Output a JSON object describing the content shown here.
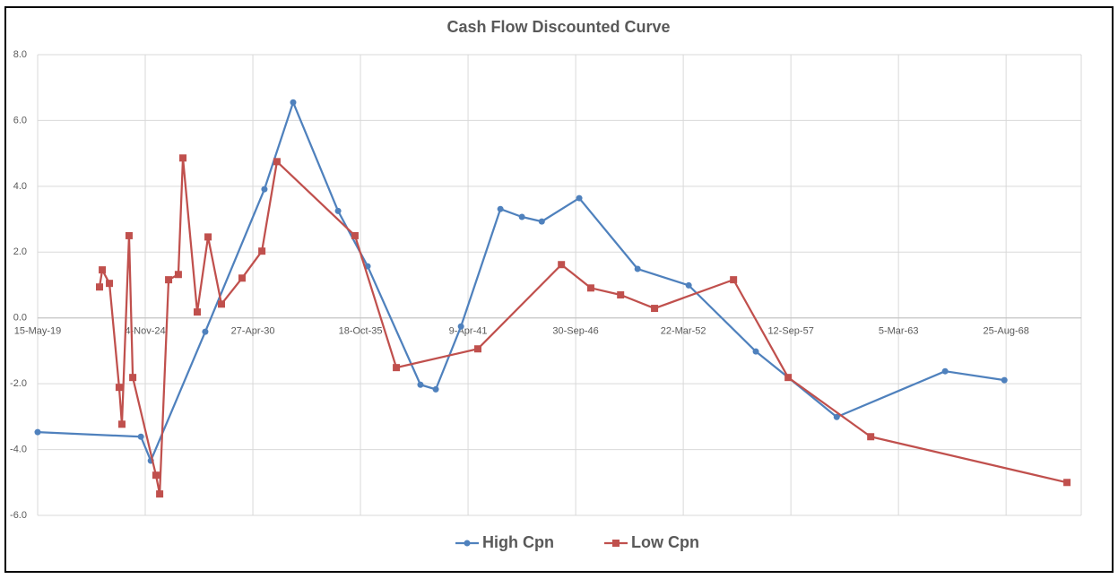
{
  "chart_data": {
    "type": "line",
    "title": "Cash Flow Discounted Curve",
    "xlim": [
      "2019-05-15",
      "2072-06-22"
    ],
    "xticks": [
      {
        "value": "2019-05-15",
        "label": "15-May-19"
      },
      {
        "value": "2024-11-04",
        "label": "4-Nov-24"
      },
      {
        "value": "2030-04-27",
        "label": "27-Apr-30"
      },
      {
        "value": "2035-10-18",
        "label": "18-Oct-35"
      },
      {
        "value": "2041-04-09",
        "label": "9-Apr-41"
      },
      {
        "value": "2046-09-30",
        "label": "30-Sep-46"
      },
      {
        "value": "2052-03-22",
        "label": "22-Mar-52"
      },
      {
        "value": "2057-09-12",
        "label": "12-Sep-57"
      },
      {
        "value": "2063-03-05",
        "label": "5-Mar-63"
      },
      {
        "value": "2068-08-25",
        "label": "25-Aug-68"
      }
    ],
    "ylim": [
      -6,
      8
    ],
    "yticks": [
      {
        "value": 8,
        "label": "8.0"
      },
      {
        "value": 6,
        "label": "6.0"
      },
      {
        "value": 4,
        "label": "4.0"
      },
      {
        "value": 2,
        "label": "2.0"
      },
      {
        "value": 0,
        "label": "0.0"
      },
      {
        "value": -2,
        "label": "-2.0"
      },
      {
        "value": -4,
        "label": "-4.0"
      },
      {
        "value": -6,
        "label": "-6.0"
      }
    ],
    "grid": true,
    "legend": "bottom",
    "series": [
      {
        "name": "High Cpn",
        "color": "#4f81bd",
        "marker": "circle",
        "x": [
          "2019-05-15",
          "2024-08-15",
          "2025-02-15",
          "2027-11-24",
          "2030-11-28",
          "2032-05-15",
          "2034-08-28",
          "2036-02-28",
          "2038-11-06",
          "2039-08-18",
          "2040-11-28",
          "2042-12-01",
          "2044-01-05",
          "2045-01-08",
          "2046-12-05",
          "2049-11-24",
          "2052-07-01",
          "2055-12-01",
          "2057-07-24",
          "2060-01-12",
          "2065-07-19",
          "2068-07-24"
        ],
        "values": [
          -3.47,
          -3.61,
          -4.34,
          -0.42,
          3.91,
          6.55,
          3.25,
          1.57,
          -2.03,
          -2.17,
          -0.26,
          3.31,
          3.07,
          2.93,
          3.64,
          1.49,
          0.99,
          -1.02,
          -1.81,
          -3.01,
          -1.62,
          -1.89
        ]
      },
      {
        "name": "Low Cpn",
        "color": "#c0504d",
        "marker": "square",
        "x": [
          "2022-07-08",
          "2022-08-28",
          "2023-01-08",
          "2023-07-08",
          "2023-08-28",
          "2024-01-08",
          "2024-03-17",
          "2025-05-22",
          "2025-07-30",
          "2026-01-12",
          "2026-07-12",
          "2026-10-05",
          "2027-06-28",
          "2028-01-15",
          "2028-09-20",
          "2029-10-08",
          "2030-10-12",
          "2031-07-19",
          "2035-07-08",
          "2037-08-15",
          "2041-10-08",
          "2046-01-08",
          "2047-07-08",
          "2049-01-12",
          "2050-10-05",
          "2054-10-12",
          "2057-07-24",
          "2061-10-05",
          "2071-10-01"
        ],
        "values": [
          0.94,
          1.46,
          1.05,
          -2.11,
          -3.23,
          2.5,
          -1.81,
          -4.78,
          -5.35,
          1.16,
          1.32,
          4.86,
          0.18,
          2.46,
          0.42,
          1.21,
          2.03,
          4.75,
          2.5,
          -1.51,
          -0.94,
          1.62,
          0.91,
          0.7,
          0.29,
          1.16,
          -1.81,
          -3.61,
          -5.0
        ]
      }
    ]
  }
}
